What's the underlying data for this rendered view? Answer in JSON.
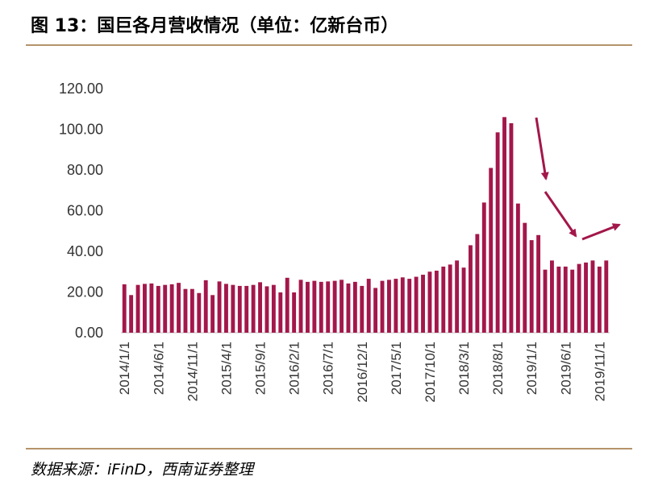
{
  "header": {
    "title": "图 13：国巨各月营收情况（单位：亿新台币）"
  },
  "footer": {
    "source": "数据来源：iFinD，西南证券整理"
  },
  "colors": {
    "bar": "#a3174a",
    "arrow": "#a3174a",
    "rule": "#b5936a"
  },
  "chart_data": {
    "type": "bar",
    "title": "图 13：国巨各月营收情况（单位：亿新台币）",
    "ylim": [
      0,
      120
    ],
    "yticks": [
      "0.00",
      "20.00",
      "40.00",
      "60.00",
      "80.00",
      "100.00",
      "120.00"
    ],
    "grid": false,
    "legend": "none",
    "x_tick_labels": [
      "2014/1/1",
      "2014/6/1",
      "2014/11/1",
      "2015/4/1",
      "2015/9/1",
      "2016/2/1",
      "2016/7/1",
      "2016/12/1",
      "2017/5/1",
      "2017/10/1",
      "2018/3/1",
      "2018/8/1",
      "2019/1/1",
      "2019/6/1",
      "2019/11/1"
    ],
    "categories": [
      "2014/1/1",
      "2014/2/1",
      "2014/3/1",
      "2014/4/1",
      "2014/5/1",
      "2014/6/1",
      "2014/7/1",
      "2014/8/1",
      "2014/9/1",
      "2014/10/1",
      "2014/11/1",
      "2014/12/1",
      "2015/1/1",
      "2015/2/1",
      "2015/3/1",
      "2015/4/1",
      "2015/5/1",
      "2015/6/1",
      "2015/7/1",
      "2015/8/1",
      "2015/9/1",
      "2015/10/1",
      "2015/11/1",
      "2015/12/1",
      "2016/1/1",
      "2016/2/1",
      "2016/3/1",
      "2016/4/1",
      "2016/5/1",
      "2016/6/1",
      "2016/7/1",
      "2016/8/1",
      "2016/9/1",
      "2016/10/1",
      "2016/11/1",
      "2016/12/1",
      "2017/1/1",
      "2017/2/1",
      "2017/3/1",
      "2017/4/1",
      "2017/5/1",
      "2017/6/1",
      "2017/7/1",
      "2017/8/1",
      "2017/9/1",
      "2017/10/1",
      "2017/11/1",
      "2017/12/1",
      "2018/1/1",
      "2018/2/1",
      "2018/3/1",
      "2018/4/1",
      "2018/5/1",
      "2018/6/1",
      "2018/7/1",
      "2018/8/1",
      "2018/9/1",
      "2018/10/1",
      "2018/11/1",
      "2018/12/1",
      "2019/1/1",
      "2019/2/1",
      "2019/3/1",
      "2019/4/1",
      "2019/5/1",
      "2019/6/1",
      "2019/7/1",
      "2019/8/1",
      "2019/9/1",
      "2019/10/1",
      "2019/11/1",
      "2019/12/1"
    ],
    "values": [
      23.8,
      18.5,
      23.5,
      24.0,
      24.2,
      23.0,
      23.5,
      23.8,
      24.5,
      21.5,
      21.5,
      19.5,
      25.8,
      18.5,
      25.2,
      24.0,
      23.5,
      23.0,
      23.0,
      23.5,
      24.8,
      22.8,
      23.5,
      19.8,
      27.0,
      19.8,
      26.0,
      25.0,
      25.5,
      25.0,
      25.2,
      25.5,
      26.0,
      24.2,
      25.0,
      23.0,
      26.5,
      22.0,
      25.5,
      26.0,
      26.5,
      27.2,
      26.5,
      27.5,
      28.5,
      30.0,
      30.5,
      32.5,
      33.5,
      35.5,
      32.0,
      43.0,
      48.5,
      64.0,
      81.0,
      98.5,
      106.0,
      103.0,
      63.5,
      54.0,
      45.5,
      48.0,
      31.0,
      35.5,
      32.5,
      32.5,
      31.0,
      33.8,
      34.5,
      35.5,
      32.5,
      35.5
    ]
  }
}
